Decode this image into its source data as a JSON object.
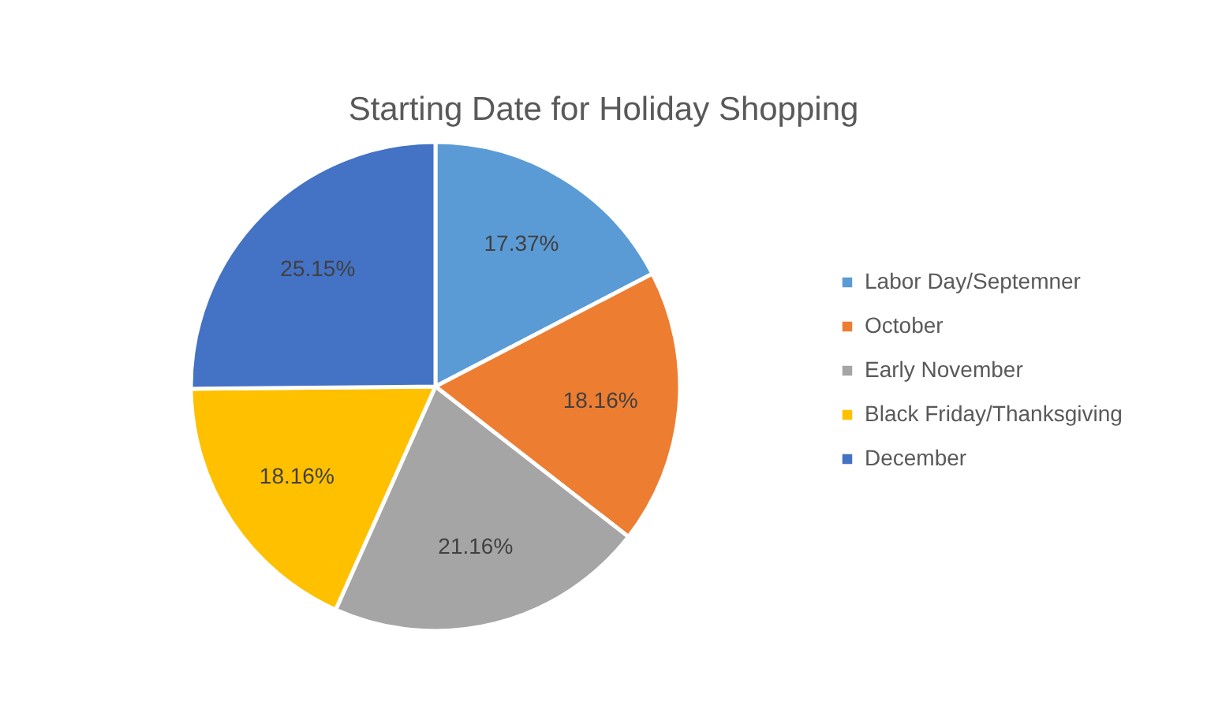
{
  "chart_data": {
    "type": "pie",
    "title": "Starting Date for Holiday Shopping",
    "categories": [
      "Labor Day/Septemner",
      "October",
      "Early November",
      "Black Friday/Thanksgiving",
      "December"
    ],
    "values": [
      17.37,
      18.16,
      21.16,
      18.16,
      25.15
    ],
    "value_labels": [
      "17.37%",
      "18.16%",
      "21.16%",
      "18.16%",
      "25.15%"
    ],
    "colors": [
      "#5b9bd5",
      "#ed7d31",
      "#a5a5a5",
      "#ffc000",
      "#4472c4"
    ],
    "legend": "right"
  }
}
